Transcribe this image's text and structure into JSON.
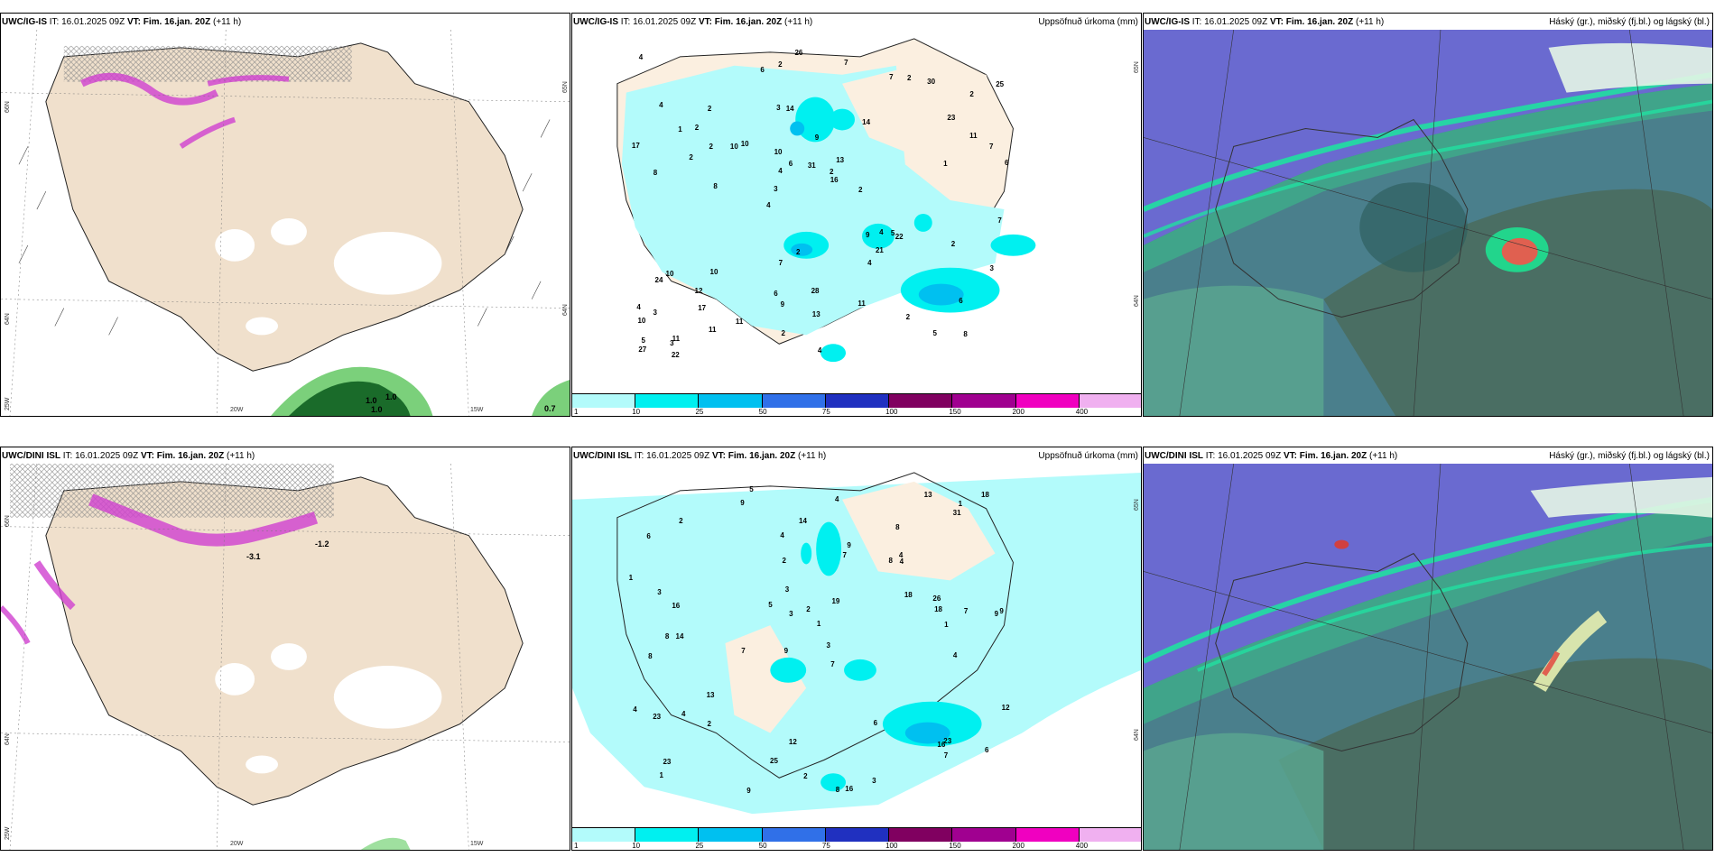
{
  "panels": {
    "top_left": {
      "model": "UWC/IG-IS",
      "it_label": "IT:",
      "it": "16.01.2025 09Z",
      "vt_label": "VT:",
      "vt": "Fim. 16.jan. 20Z",
      "lead": "(+11 h)"
    },
    "top_mid": {
      "model": "UWC/IG-IS",
      "it_label": "IT:",
      "it": "16.01.2025 09Z",
      "vt_label": "VT:",
      "vt": "Fim. 16.jan. 20Z",
      "lead": "(+11 h)",
      "right": "Uppsöfnuð úrkoma (mm)"
    },
    "top_right": {
      "model": "UWC/IG-IS",
      "it_label": "IT:",
      "it": "16.01.2025 09Z",
      "vt_label": "VT:",
      "vt": "Fim. 16.jan. 20Z",
      "lead": "(+11 h)",
      "right": "Háský (gr.), miðský (fj.bl.) og lágský (bl.)"
    },
    "bot_left": {
      "model": "UWC/DINI ISL",
      "it_label": "IT:",
      "it": "16.01.2025 09Z",
      "vt_label": "VT:",
      "vt": "Fim. 16.jan. 20Z",
      "lead": "(+11 h)"
    },
    "bot_mid": {
      "model": "UWC/DINI ISL",
      "it_label": "IT:",
      "it": "16.01.2025 09Z",
      "vt_label": "VT:",
      "vt": "Fim. 16.jan. 20Z",
      "lead": "(+11 h)",
      "right": "Uppsöfnuð úrkoma (mm)"
    },
    "bot_right": {
      "model": "UWC/DINI ISL",
      "it_label": "IT:",
      "it": "16.01.2025 09Z",
      "vt_label": "VT:",
      "vt": "Fim. 16.jan. 20Z",
      "lead": "(+11 h)",
      "right": "Háský (gr.), miðský (fj.bl.) og lágský (bl.)"
    }
  },
  "axes": {
    "lat_66": "66N",
    "lat_64": "64N",
    "lat_65": "65N",
    "lon_25": "25W",
    "lon_20": "20W",
    "lon_15": "15W"
  },
  "top_left_annotations": {
    "a": "1.0",
    "b": "1.0",
    "c": "1.0",
    "d": "0.7"
  },
  "bot_left_annotations": {
    "a": "-1.2",
    "b": "-3.1"
  },
  "colorbar": {
    "ticks": [
      "1",
      "10",
      "25",
      "50",
      "75",
      "100",
      "150",
      "200",
      "400"
    ],
    "colors": [
      "#b3fbfb",
      "#00f0f0",
      "#00c0f0",
      "#3070e8",
      "#2030c0",
      "#800060",
      "#a00090",
      "#f000c0",
      "#f0b0f0"
    ]
  },
  "top_mid_values": [
    "8",
    "8",
    "2",
    "4",
    "14",
    "11",
    "3",
    "9",
    "10",
    "10",
    "10",
    "17",
    "14",
    "13",
    "22",
    "4",
    "2",
    "6",
    "9",
    "11",
    "3",
    "6",
    "4",
    "2",
    "7",
    "10",
    "5",
    "6",
    "5",
    "4",
    "10",
    "2",
    "4",
    "11",
    "7",
    "2",
    "5",
    "9",
    "16",
    "24",
    "23",
    "25",
    "21",
    "11",
    "12",
    "22",
    "27",
    "28",
    "30",
    "26",
    "8",
    "17",
    "2",
    "2",
    "3",
    "7",
    "6",
    "6",
    "3",
    "7",
    "11",
    "4",
    "2",
    "4",
    "4",
    "1",
    "7",
    "10",
    "13",
    "31",
    "3",
    "2",
    "2",
    "2",
    "1",
    "2",
    "2"
  ],
  "bot_mid_values": [
    "5",
    "8",
    "9",
    "9",
    "7",
    "14",
    "6",
    "8",
    "8",
    "7",
    "1",
    "1",
    "9",
    "7",
    "8",
    "16",
    "12",
    "13",
    "18",
    "13",
    "16",
    "8",
    "9",
    "7",
    "4",
    "3",
    "3",
    "18",
    "23",
    "23",
    "16",
    "9",
    "4",
    "5",
    "6",
    "12",
    "26",
    "25",
    "18",
    "14",
    "23",
    "9",
    "3",
    "2",
    "2",
    "4",
    "7",
    "4",
    "1",
    "3",
    "4",
    "1",
    "19",
    "31",
    "4",
    "2",
    "3",
    "2",
    "1",
    "2",
    "6",
    "4"
  ]
}
